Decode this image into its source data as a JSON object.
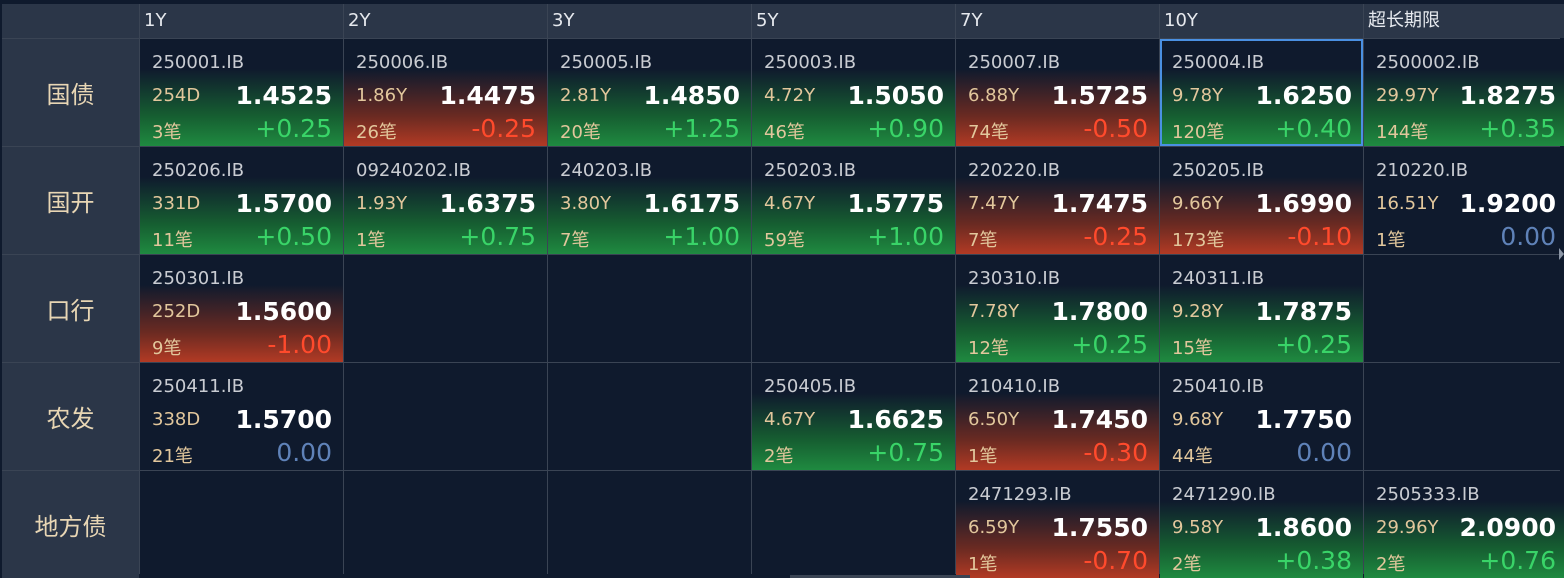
{
  "columns": [
    "1Y",
    "2Y",
    "3Y",
    "5Y",
    "7Y",
    "10Y",
    "超长期限"
  ],
  "rows": [
    {
      "label": "国债",
      "cells": [
        {
          "code": "250001.IB",
          "term": "254D",
          "yield": "1.4525",
          "count": "3笔",
          "change": "+0.25",
          "dir": "up"
        },
        {
          "code": "250006.IB",
          "term": "1.86Y",
          "yield": "1.4475",
          "count": "26笔",
          "change": "-0.25",
          "dir": "down"
        },
        {
          "code": "250005.IB",
          "term": "2.81Y",
          "yield": "1.4850",
          "count": "20笔",
          "change": "+1.25",
          "dir": "up"
        },
        {
          "code": "250003.IB",
          "term": "4.72Y",
          "yield": "1.5050",
          "count": "46笔",
          "change": "+0.90",
          "dir": "up"
        },
        {
          "code": "250007.IB",
          "term": "6.88Y",
          "yield": "1.5725",
          "count": "74笔",
          "change": "-0.50",
          "dir": "down"
        },
        {
          "code": "250004.IB",
          "term": "9.78Y",
          "yield": "1.6250",
          "count": "120笔",
          "change": "+0.40",
          "dir": "up",
          "selected": true
        },
        {
          "code": "2500002.IB",
          "term": "29.97Y",
          "yield": "1.8275",
          "count": "144笔",
          "change": "+0.35",
          "dir": "up"
        }
      ]
    },
    {
      "label": "国开",
      "cells": [
        {
          "code": "250206.IB",
          "term": "331D",
          "yield": "1.5700",
          "count": "11笔",
          "change": "+0.50",
          "dir": "up"
        },
        {
          "code": "09240202.IB",
          "term": "1.93Y",
          "yield": "1.6375",
          "count": "1笔",
          "change": "+0.75",
          "dir": "up"
        },
        {
          "code": "240203.IB",
          "term": "3.80Y",
          "yield": "1.6175",
          "count": "7笔",
          "change": "+1.00",
          "dir": "up"
        },
        {
          "code": "250203.IB",
          "term": "4.67Y",
          "yield": "1.5775",
          "count": "59笔",
          "change": "+1.00",
          "dir": "up"
        },
        {
          "code": "220220.IB",
          "term": "7.47Y",
          "yield": "1.7475",
          "count": "7笔",
          "change": "-0.25",
          "dir": "down"
        },
        {
          "code": "250205.IB",
          "term": "9.66Y",
          "yield": "1.6990",
          "count": "173笔",
          "change": "-0.10",
          "dir": "down"
        },
        {
          "code": "210220.IB",
          "term": "16.51Y",
          "yield": "1.9200",
          "count": "1笔",
          "change": "0.00",
          "dir": "flat"
        }
      ]
    },
    {
      "label": "口行",
      "cells": [
        {
          "code": "250301.IB",
          "term": "252D",
          "yield": "1.5600",
          "count": "9笔",
          "change": "-1.00",
          "dir": "down"
        },
        null,
        null,
        null,
        {
          "code": "230310.IB",
          "term": "7.78Y",
          "yield": "1.7800",
          "count": "12笔",
          "change": "+0.25",
          "dir": "up"
        },
        {
          "code": "240311.IB",
          "term": "9.28Y",
          "yield": "1.7875",
          "count": "15笔",
          "change": "+0.25",
          "dir": "up"
        },
        null
      ]
    },
    {
      "label": "农发",
      "cells": [
        {
          "code": "250411.IB",
          "term": "338D",
          "yield": "1.5700",
          "count": "21笔",
          "change": "0.00",
          "dir": "flat"
        },
        null,
        null,
        {
          "code": "250405.IB",
          "term": "4.67Y",
          "yield": "1.6625",
          "count": "2笔",
          "change": "+0.75",
          "dir": "up"
        },
        {
          "code": "210410.IB",
          "term": "6.50Y",
          "yield": "1.7450",
          "count": "1笔",
          "change": "-0.30",
          "dir": "down"
        },
        {
          "code": "250410.IB",
          "term": "9.68Y",
          "yield": "1.7750",
          "count": "44笔",
          "change": "0.00",
          "dir": "flat"
        },
        null
      ]
    },
    {
      "label": "地方债",
      "cells": [
        null,
        null,
        null,
        null,
        {
          "code": "2471293.IB",
          "term": "6.59Y",
          "yield": "1.7550",
          "count": "1笔",
          "change": "-0.70",
          "dir": "down"
        },
        {
          "code": "2471290.IB",
          "term": "9.58Y",
          "yield": "1.8600",
          "count": "2笔",
          "change": "+0.38",
          "dir": "up"
        },
        {
          "code": "2505333.IB",
          "term": "29.96Y",
          "yield": "2.0900",
          "count": "2笔",
          "change": "+0.76",
          "dir": "up"
        }
      ]
    }
  ],
  "colors": {
    "up": "#39d468",
    "down": "#ff4a2c",
    "flat": "#5f82b8",
    "selected_border": "#4a90e2"
  }
}
